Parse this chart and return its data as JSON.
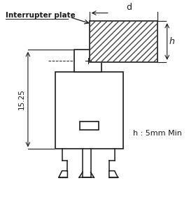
{
  "bg_color": "#ffffff",
  "line_color": "#1a1a1a",
  "hatch_color": "#444444",
  "label_interrupter": "Interrupter plate",
  "label_d": "d",
  "label_h_dim": "h",
  "label_15_25": "15.25",
  "label_h_note": "h : 5mm Min",
  "figsize": [
    2.8,
    2.85
  ],
  "dpi": 100
}
